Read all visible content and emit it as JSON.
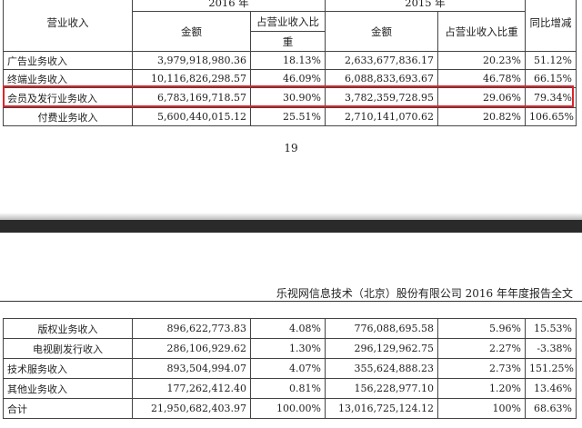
{
  "table_top": {
    "header": {
      "col1": "营业收入",
      "year_2016": "2016 年",
      "year_2015": "2015 年",
      "yoy": "同比增减",
      "amount_2016": "金额",
      "ratio_2016_line1": "占营业收入比",
      "ratio_2016_line2": "重",
      "amount_2015": "金额",
      "ratio_2015": "占营业收入比重"
    },
    "rows": [
      {
        "label": "广告业务收入",
        "amt16": "3,979,918,980.36",
        "pct16": "18.13%",
        "amt15": "2,633,677,836.17",
        "pct15": "20.23%",
        "yoy": "51.12%"
      },
      {
        "label": "终端业务收入",
        "amt16": "10,116,826,298.57",
        "pct16": "46.09%",
        "amt15": "6,088,833,693.67",
        "pct15": "46.78%",
        "yoy": "66.15%"
      },
      {
        "label": "会员及发行业务收入",
        "amt16": "6,783,169,718.57",
        "pct16": "30.90%",
        "amt15": "3,782,359,728.95",
        "pct15": "29.06%",
        "yoy": "79.34%"
      },
      {
        "label": "付费业务收入",
        "amt16": "5,600,440,015.12",
        "pct16": "25.51%",
        "amt15": "2,710,141,070.62",
        "pct15": "20.82%",
        "yoy": "106.65%"
      }
    ]
  },
  "page_number": "19",
  "doc_title": "乐视网信息技术（北京）股份有限公司 2016 年年度报告全文",
  "table_bottom": {
    "rows": [
      {
        "label": "版权业务收入",
        "amt16": "896,622,773.83",
        "pct16": "4.08%",
        "amt15": "776,088,695.58",
        "pct15": "5.96%",
        "yoy": "15.53%"
      },
      {
        "label": "电视剧发行收入",
        "amt16": "286,106,929.62",
        "pct16": "1.30%",
        "amt15": "296,129,962.75",
        "pct15": "2.27%",
        "yoy": "-3.38%"
      },
      {
        "label": "技术服务收入",
        "amt16": "893,504,994.07",
        "pct16": "4.07%",
        "amt15": "355,624,888.23",
        "pct15": "2.73%",
        "yoy": "151.25%"
      },
      {
        "label": "其他业务收入",
        "amt16": "177,262,412.40",
        "pct16": "0.81%",
        "amt15": "156,228,977.10",
        "pct15": "1.20%",
        "yoy": "13.46%"
      },
      {
        "label": "合计",
        "amt16": "21,950,682,403.97",
        "pct16": "100.00%",
        "amt15": "13,016,725,124.12",
        "pct15": "100%",
        "yoy": "68.63%"
      }
    ]
  }
}
